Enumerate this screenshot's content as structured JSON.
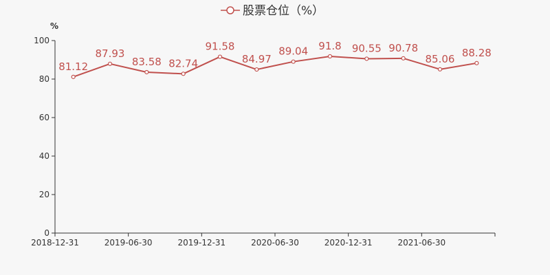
{
  "chart_data": {
    "type": "line",
    "legend": {
      "label": "股票仓位（%）",
      "position": "top-center"
    },
    "ylabel": "%",
    "xlabel": "",
    "ylim": [
      0,
      100
    ],
    "yticks": [
      0,
      20,
      40,
      60,
      80,
      100
    ],
    "xtick_labels": [
      "2018-12-31",
      "2019-06-30",
      "2019-12-31",
      "2020-06-30",
      "2020-12-31",
      "2021-06-30"
    ],
    "grid": false,
    "series": [
      {
        "name": "股票仓位（%）",
        "color": "#c0504d",
        "values": [
          81.12,
          87.93,
          83.58,
          82.74,
          91.58,
          84.97,
          89.04,
          91.8,
          90.55,
          90.78,
          85.06,
          88.28
        ],
        "labels": [
          "81.12",
          "87.93",
          "83.58",
          "82.74",
          "91.58",
          "84.97",
          "89.04",
          "91.8",
          "90.55",
          "90.78",
          "85.06",
          "88.28"
        ]
      }
    ]
  }
}
